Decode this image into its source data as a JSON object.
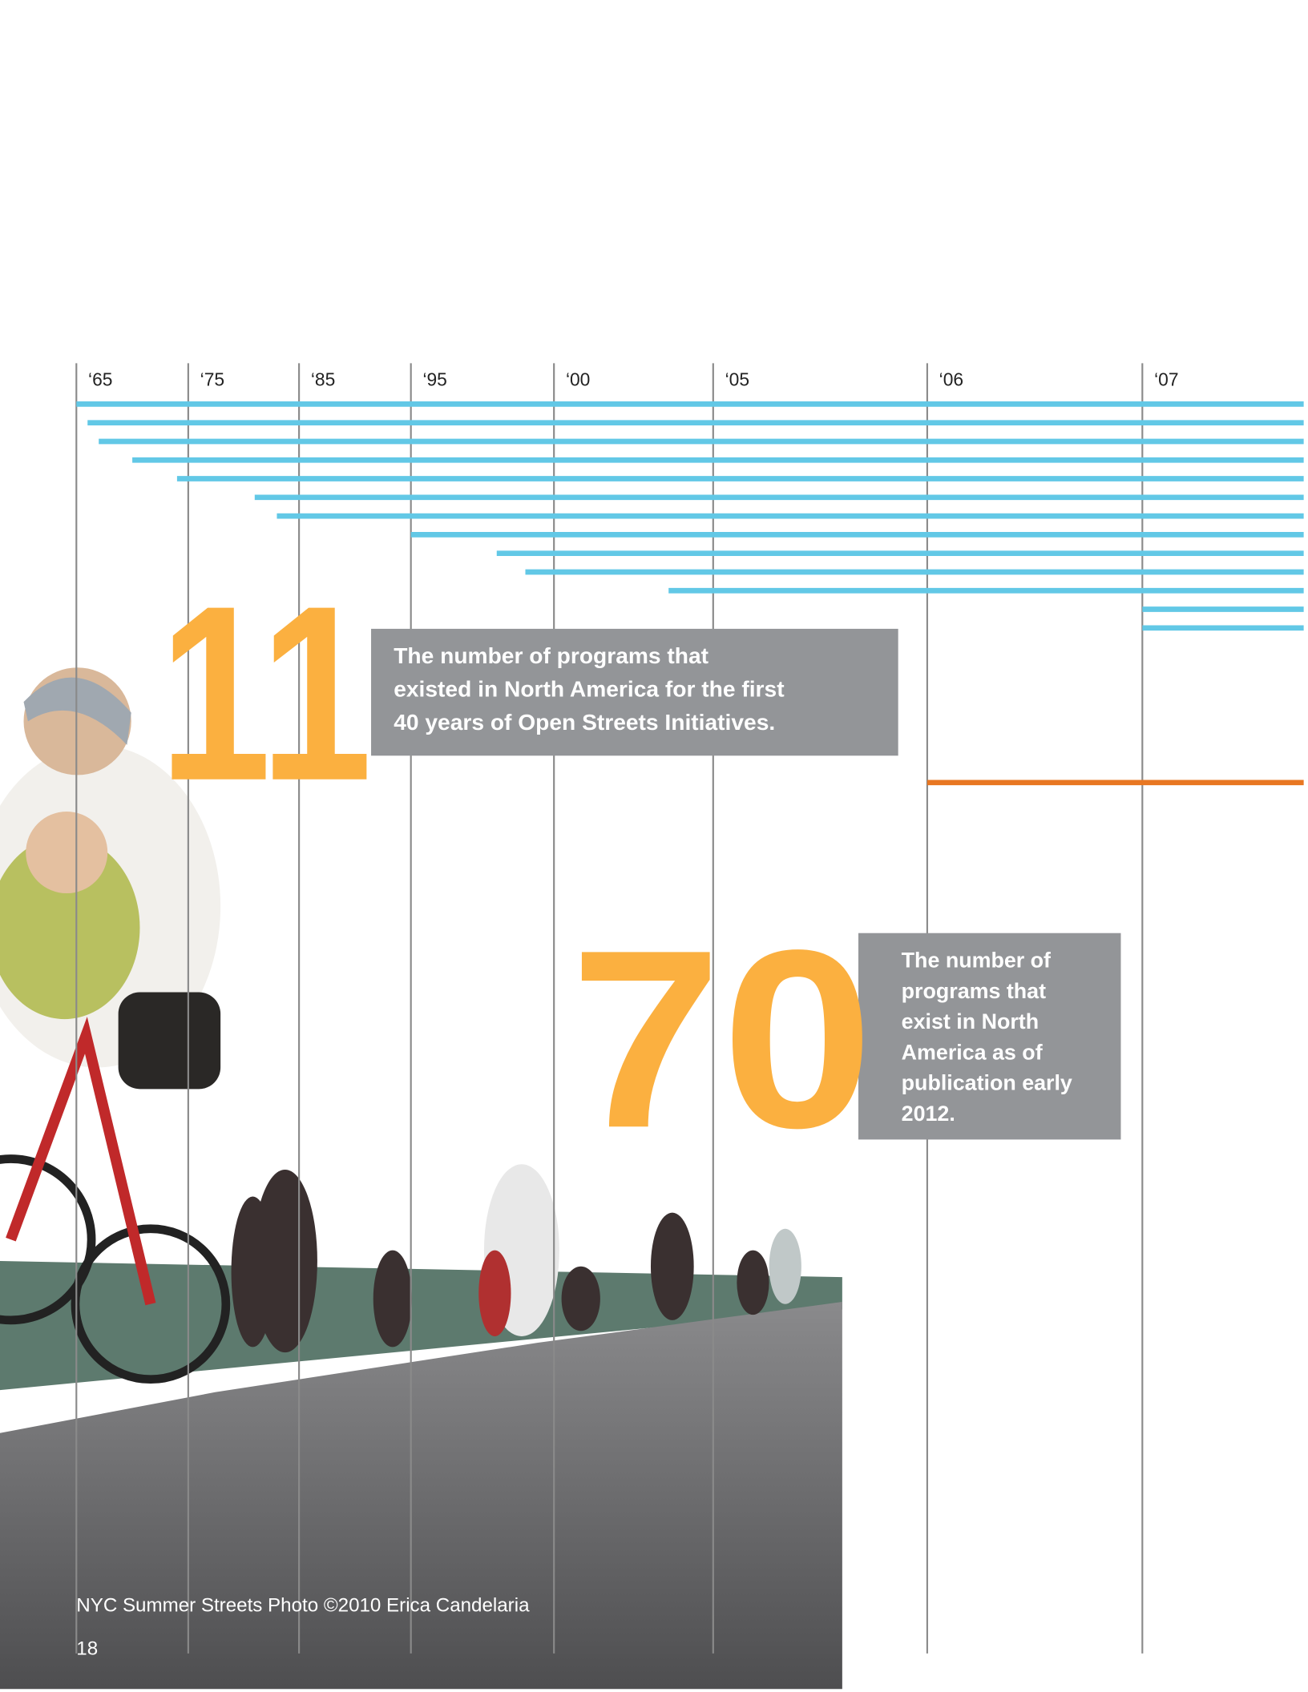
{
  "timeline": {
    "ticks": [
      {
        "value": 1965,
        "label": "‘65"
      },
      {
        "value": 1975,
        "label": "‘75"
      },
      {
        "value": 1985,
        "label": "‘85"
      },
      {
        "value": 1995,
        "label": "‘95"
      },
      {
        "value": 2000,
        "label": "‘00"
      },
      {
        "value": 2005,
        "label": "‘05"
      },
      {
        "value": 2006,
        "label": "‘06"
      },
      {
        "value": 2007,
        "label": "‘07"
      }
    ],
    "xlim": [
      1965,
      2007.75
    ],
    "color": "#62c8e6",
    "starts": [
      1965,
      1966,
      1967,
      1970,
      1974,
      1981,
      1983,
      1995,
      1998,
      1999,
      2003.6,
      2007,
      2007
    ],
    "highlight": {
      "start": 2006,
      "color": "#e87722"
    }
  },
  "callouts": [
    {
      "number": "11",
      "lines": [
        "The number of programs that",
        "existed in North America for the first",
        "40 years of Open Streets Initiatives."
      ]
    },
    {
      "number": "70",
      "lines": [
        "The number of",
        "programs that",
        "exist in North",
        "America as of",
        "publication early",
        "2012."
      ]
    }
  ],
  "caption": "NYC Summer Streets Photo ©2010 Erica Candelaria",
  "page_number": "18"
}
